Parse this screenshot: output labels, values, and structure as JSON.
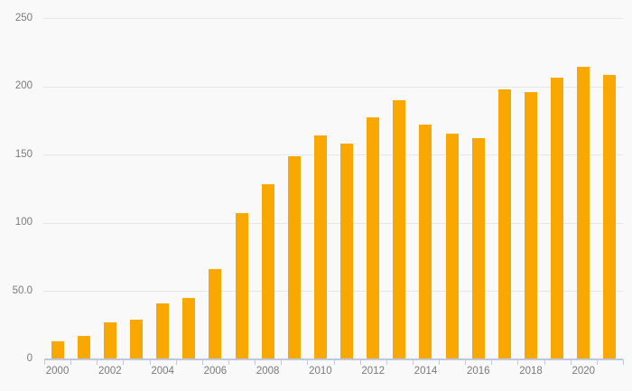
{
  "colors": {
    "background": "#f9f9f9",
    "bar": "#f8a800",
    "gridline": "#e7e7e7",
    "axis": "#bdc7e1",
    "label": "#7a7a7a"
  },
  "chart_data": {
    "type": "bar",
    "title": "",
    "xlabel": "",
    "ylabel": "",
    "categories": [
      "2000",
      "2001",
      "2002",
      "2003",
      "2004",
      "2005",
      "2006",
      "2007",
      "2008",
      "2009",
      "2010",
      "2011",
      "2012",
      "2013",
      "2014",
      "2015",
      "2016",
      "2017",
      "2018",
      "2019",
      "2020",
      "2021"
    ],
    "values": [
      13,
      17,
      27,
      29,
      41,
      45,
      66,
      107,
      128,
      149,
      164,
      158,
      177,
      190,
      172,
      165,
      162,
      198,
      196,
      206,
      214,
      208
    ],
    "ylim": [
      0,
      250
    ],
    "grid": true,
    "legend": false,
    "y_axis": {
      "ticks": [
        {
          "v": 250,
          "label": "250"
        },
        {
          "v": 200,
          "label": "200"
        },
        {
          "v": 150,
          "label": "150"
        },
        {
          "v": 100,
          "label": "100"
        },
        {
          "v": 50,
          "label": "50.0"
        },
        {
          "v": 0,
          "label": "0"
        }
      ]
    },
    "x_axis": {
      "labels": [
        "2000",
        "2002",
        "2004",
        "2006",
        "2008",
        "2010",
        "2012",
        "2014",
        "2016",
        "2018",
        "2020"
      ]
    }
  }
}
